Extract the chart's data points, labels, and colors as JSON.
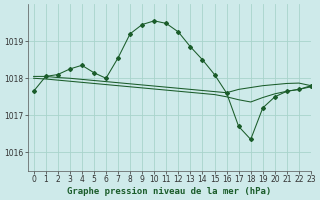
{
  "title": "Graphe pression niveau de la mer (hPa)",
  "bg_color": "#ceeaea",
  "grid_color": "#a8d4cc",
  "line_color": "#1a5c2a",
  "xlim": [
    -0.5,
    23
  ],
  "ylim": [
    1015.5,
    1020.0
  ],
  "yticks": [
    1016,
    1017,
    1018,
    1019
  ],
  "xticks": [
    0,
    1,
    2,
    3,
    4,
    5,
    6,
    7,
    8,
    9,
    10,
    11,
    12,
    13,
    14,
    15,
    16,
    17,
    18,
    19,
    20,
    21,
    22,
    23
  ],
  "series1_x": [
    0,
    1,
    2,
    3,
    4,
    5,
    6,
    7,
    8,
    9,
    10,
    11,
    12,
    13,
    14,
    15,
    16,
    17,
    18,
    19,
    20,
    21,
    22,
    23
  ],
  "series1_y": [
    1017.65,
    1018.05,
    1018.1,
    1018.25,
    1018.35,
    1018.15,
    1018.0,
    1018.55,
    1019.2,
    1019.45,
    1019.55,
    1019.48,
    1019.25,
    1018.85,
    1018.5,
    1018.1,
    1017.6,
    1016.7,
    1016.35,
    1017.2,
    1017.5,
    1017.65,
    1017.7,
    1017.8
  ],
  "series2_x": [
    0,
    1,
    2,
    3,
    4,
    5,
    6,
    7,
    8,
    9,
    10,
    11,
    12,
    13,
    14,
    15,
    16,
    17,
    18,
    19,
    20,
    21,
    22,
    23
  ],
  "series2_y": [
    1018.05,
    1018.05,
    1018.02,
    1018.0,
    1017.97,
    1017.94,
    1017.91,
    1017.88,
    1017.85,
    1017.82,
    1017.79,
    1017.76,
    1017.73,
    1017.7,
    1017.67,
    1017.64,
    1017.61,
    1017.7,
    1017.75,
    1017.8,
    1017.83,
    1017.86,
    1017.87,
    1017.8
  ],
  "series3_x": [
    0,
    1,
    2,
    3,
    4,
    5,
    6,
    7,
    8,
    9,
    10,
    11,
    12,
    13,
    14,
    15,
    16,
    17,
    18,
    19,
    20,
    21,
    22,
    23
  ],
  "series3_y": [
    1018.0,
    1017.98,
    1017.95,
    1017.92,
    1017.89,
    1017.86,
    1017.83,
    1017.8,
    1017.77,
    1017.74,
    1017.71,
    1017.68,
    1017.65,
    1017.62,
    1017.59,
    1017.56,
    1017.5,
    1017.42,
    1017.36,
    1017.48,
    1017.58,
    1017.65,
    1017.7,
    1017.77
  ],
  "title_fontsize": 6.5,
  "tick_fontsize": 5.5,
  "marker": "D",
  "marker_size": 2.0,
  "linewidth": 0.75
}
